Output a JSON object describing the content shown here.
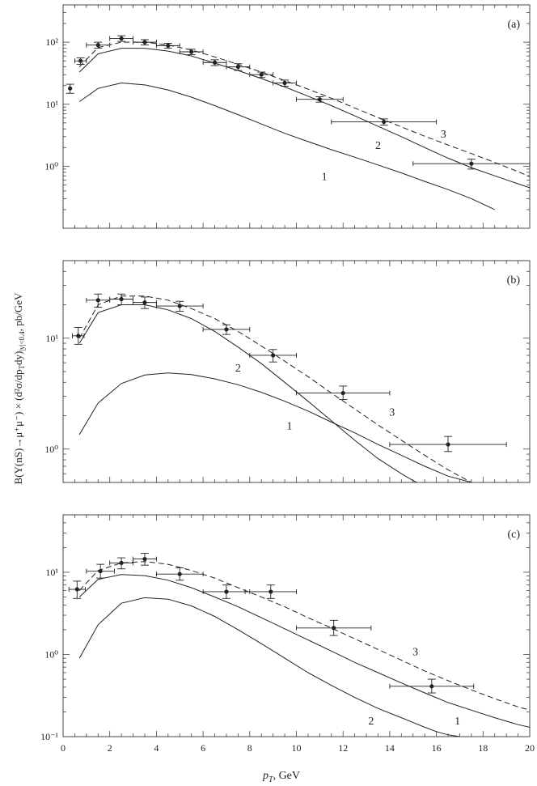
{
  "ylabel": "B(Υ(nS)→μ⁺μ⁻) × (d²σ/dp_T dy)|y|<0.4, pb/GeV",
  "ylabel_parts": {
    "main": "B(Υ(nS)→μ⁺μ⁻) × (d²σ/dp",
    "sub1": "T",
    "mid": "dy)",
    "sub2": "|y|<0.4",
    "tail": ", pb/GeV"
  },
  "xlabel": "p_T, GeV",
  "xlabel_parts": {
    "main": "p",
    "sub": "T",
    "tail": ", GeV"
  },
  "colors": {
    "axis": "#444444",
    "curve": "#222222",
    "data": "#222222"
  },
  "chart_data": [
    {
      "type": "line",
      "panel_label": "(a)",
      "yscale": "log",
      "xlim": [
        0,
        20
      ],
      "ylim": [
        0.1,
        400
      ],
      "yticks": [
        {
          "v": 1,
          "label": "10⁰"
        },
        {
          "v": 10,
          "label": "10¹"
        },
        {
          "v": 100,
          "label": "10²"
        }
      ],
      "series": [
        {
          "name": "1",
          "style": "solid",
          "x": [
            0.7,
            1.5,
            2.5,
            3.5,
            4.5,
            5.5,
            6.5,
            7.5,
            8.5,
            9.5,
            10.5,
            11.5,
            12.5,
            13.5,
            14.5,
            15.5,
            16.5,
            17.5,
            18.5
          ],
          "y": [
            11,
            18,
            22,
            20.5,
            17,
            13,
            9.5,
            6.8,
            4.8,
            3.4,
            2.5,
            1.85,
            1.4,
            1.05,
            0.78,
            0.57,
            0.42,
            0.3,
            0.2
          ]
        },
        {
          "name": "2",
          "style": "solid",
          "x": [
            0.7,
            1.5,
            2.5,
            3.5,
            4.5,
            5.5,
            6.5,
            7.5,
            8.5,
            9.5,
            10.5,
            11.5,
            12.5,
            13.5,
            14.5,
            15.5,
            16.5,
            17.5,
            18.5,
            19.5,
            20
          ],
          "y": [
            33,
            65,
            80,
            80,
            72,
            60,
            46,
            35,
            26,
            19,
            13.5,
            9.5,
            6.5,
            4.4,
            3.0,
            2.0,
            1.35,
            0.95,
            0.7,
            0.52,
            0.45
          ]
        },
        {
          "name": "3",
          "style": "dashed",
          "x": [
            0.7,
            1.5,
            2.5,
            3.5,
            4.5,
            5.5,
            6.5,
            7.5,
            8.5,
            9.5,
            10.5,
            11.5,
            12.5,
            13.5,
            14.5,
            15.5,
            16.5,
            17.5,
            18.5,
            19.5,
            20
          ],
          "y": [
            40,
            82,
            100,
            100,
            90,
            75,
            58,
            44,
            33,
            24,
            17.5,
            12.5,
            8.7,
            6.1,
            4.3,
            3.05,
            2.2,
            1.6,
            1.15,
            0.82,
            0.68
          ]
        }
      ],
      "points": [
        {
          "x": 0.3,
          "y": 18,
          "xerr": 0,
          "ylo": 15,
          "yhi": 21
        },
        {
          "x": 0.75,
          "y": 50,
          "xerr": 0.25,
          "ylo": 44,
          "yhi": 56
        },
        {
          "x": 1.5,
          "y": 90,
          "xerr": 0.5,
          "ylo": 80,
          "yhi": 100
        },
        {
          "x": 2.5,
          "y": 115,
          "xerr": 0.5,
          "ylo": 103,
          "yhi": 127
        },
        {
          "x": 3.5,
          "y": 100,
          "xerr": 0.5,
          "ylo": 90,
          "yhi": 110
        },
        {
          "x": 4.5,
          "y": 88,
          "xerr": 0.5,
          "ylo": 80,
          "yhi": 96
        },
        {
          "x": 5.5,
          "y": 70,
          "xerr": 0.5,
          "ylo": 63,
          "yhi": 77
        },
        {
          "x": 6.5,
          "y": 47,
          "xerr": 0.5,
          "ylo": 42,
          "yhi": 52
        },
        {
          "x": 7.5,
          "y": 40,
          "xerr": 0.5,
          "ylo": 35,
          "yhi": 45
        },
        {
          "x": 8.5,
          "y": 30,
          "xerr": 0.5,
          "ylo": 27,
          "yhi": 33
        },
        {
          "x": 9.5,
          "y": 22,
          "xerr": 0.5,
          "ylo": 19.5,
          "yhi": 24.5
        },
        {
          "x": 11,
          "y": 12,
          "xerr": 1,
          "ylo": 10.8,
          "yhi": 13.2
        },
        {
          "x": 13.75,
          "y": 5.2,
          "xerr": 2.25,
          "ylo": 4.6,
          "yhi": 5.8
        },
        {
          "x": 17.5,
          "y": 1.1,
          "xerr": 2.5,
          "ylo": 0.9,
          "yhi": 1.3
        }
      ],
      "curve_labels": [
        {
          "text": "1",
          "x": 11.2,
          "y": 0.6
        },
        {
          "text": "2",
          "x": 13.5,
          "y": 1.9
        },
        {
          "text": "3",
          "x": 16.3,
          "y": 2.9
        }
      ]
    },
    {
      "type": "line",
      "panel_label": "(b)",
      "yscale": "log",
      "xlim": [
        0,
        20
      ],
      "ylim": [
        0.5,
        50
      ],
      "yticks": [
        {
          "v": 1,
          "label": "10⁰"
        },
        {
          "v": 10,
          "label": "10¹"
        }
      ],
      "series": [
        {
          "name": "1",
          "style": "solid",
          "x": [
            0.7,
            1.5,
            2.5,
            3.5,
            4.5,
            5.5,
            6.5,
            7.5,
            8.5,
            9.5,
            10.5,
            11.5,
            12.5,
            13.5,
            14.5,
            15.5,
            16.5,
            17.5,
            18.5
          ],
          "y": [
            1.35,
            2.6,
            3.9,
            4.65,
            4.85,
            4.7,
            4.3,
            3.8,
            3.25,
            2.7,
            2.2,
            1.75,
            1.4,
            1.1,
            0.88,
            0.7,
            0.57,
            0.5,
            0.43
          ]
        },
        {
          "name": "2",
          "style": "solid",
          "x": [
            0.7,
            1.5,
            2.5,
            3.5,
            4.5,
            5.5,
            6.5,
            7.5,
            8.5,
            9.5,
            10.5,
            11.5,
            12.5,
            13.5,
            14.5,
            15.0,
            15.5
          ],
          "y": [
            9,
            17,
            20,
            20,
            18,
            15,
            11.5,
            8.3,
            5.9,
            4.0,
            2.7,
            1.8,
            1.2,
            0.82,
            0.6,
            0.52,
            0.46
          ]
        },
        {
          "name": "3",
          "style": "dashed",
          "x": [
            0.7,
            1.5,
            2.5,
            3.5,
            4.5,
            5.5,
            6.5,
            7.5,
            8.5,
            9.5,
            10.5,
            11.5,
            12.5,
            13.5,
            14.5,
            15.5,
            16.5,
            17.5,
            18.0
          ],
          "y": [
            10,
            20,
            24,
            24,
            22,
            18.5,
            15,
            11.5,
            8.5,
            6.2,
            4.5,
            3.2,
            2.3,
            1.65,
            1.2,
            0.88,
            0.65,
            0.5,
            0.44
          ]
        }
      ],
      "points": [
        {
          "x": 0.65,
          "y": 10.5,
          "xerr": 0.25,
          "ylo": 8.8,
          "yhi": 12.5
        },
        {
          "x": 1.5,
          "y": 22,
          "xerr": 0.5,
          "ylo": 19,
          "yhi": 25
        },
        {
          "x": 2.5,
          "y": 22.5,
          "xerr": 0.5,
          "ylo": 20,
          "yhi": 25
        },
        {
          "x": 3.5,
          "y": 21,
          "xerr": 0.5,
          "ylo": 18.5,
          "yhi": 23.5
        },
        {
          "x": 5,
          "y": 19.5,
          "xerr": 1,
          "ylo": 17.5,
          "yhi": 21.5
        },
        {
          "x": 7,
          "y": 12,
          "xerr": 1,
          "ylo": 10.8,
          "yhi": 13.2
        },
        {
          "x": 9,
          "y": 7,
          "xerr": 1,
          "ylo": 6.1,
          "yhi": 7.9
        },
        {
          "x": 12,
          "y": 3.2,
          "xerr": 2,
          "ylo": 2.8,
          "yhi": 3.7
        },
        {
          "x": 16.5,
          "y": 1.1,
          "xerr": 2.5,
          "ylo": 0.95,
          "yhi": 1.3
        }
      ],
      "curve_labels": [
        {
          "text": "2",
          "x": 7.5,
          "y": 5.0
        },
        {
          "text": "1",
          "x": 9.7,
          "y": 1.5
        },
        {
          "text": "3",
          "x": 14.1,
          "y": 2.0
        }
      ]
    },
    {
      "type": "line",
      "panel_label": "(c)",
      "yscale": "log",
      "xlim": [
        0,
        20
      ],
      "ylim": [
        0.1,
        50
      ],
      "yticks": [
        {
          "v": 0.1,
          "label": "10⁻¹"
        },
        {
          "v": 1,
          "label": "10⁰"
        },
        {
          "v": 10,
          "label": "10¹"
        }
      ],
      "series": [
        {
          "name": "1",
          "style": "solid",
          "x": [
            0.7,
            1.5,
            2.5,
            3.5,
            4.5,
            5.5,
            6.5,
            7.5,
            8.5,
            9.5,
            10.5,
            11.5,
            12.5,
            13.5,
            14.5,
            15.5,
            16.0,
            16.5,
            17.0
          ],
          "y": [
            0.9,
            2.3,
            4.2,
            4.9,
            4.7,
            3.9,
            2.9,
            2.0,
            1.35,
            0.9,
            0.6,
            0.42,
            0.3,
            0.22,
            0.17,
            0.13,
            0.115,
            0.105,
            0.1
          ]
        },
        {
          "name": "2",
          "style": "solid",
          "x": [
            0.7,
            1.5,
            2.5,
            3.5,
            4.5,
            5.5,
            6.5,
            7.5,
            8.5,
            9.5,
            10.5,
            11.5,
            12.5,
            13.5,
            14.5,
            15.5,
            16.5,
            17.5,
            18.5,
            19.5,
            20
          ],
          "y": [
            5,
            8.2,
            9.4,
            9.1,
            8.0,
            6.5,
            5.0,
            3.8,
            2.8,
            2.05,
            1.5,
            1.1,
            0.8,
            0.6,
            0.45,
            0.34,
            0.26,
            0.21,
            0.17,
            0.14,
            0.13
          ]
        },
        {
          "name": "3",
          "style": "dashed",
          "x": [
            0.7,
            1.5,
            2.5,
            3.5,
            4.5,
            5.5,
            6.5,
            7.5,
            8.5,
            9.5,
            10.5,
            11.5,
            12.5,
            13.5,
            14.5,
            15.5,
            16.5,
            17.5,
            18.5,
            19.5,
            20
          ],
          "y": [
            6,
            10.5,
            13,
            13.5,
            12.5,
            10.5,
            8.5,
            6.5,
            5.0,
            3.8,
            2.8,
            2.1,
            1.55,
            1.15,
            0.85,
            0.63,
            0.48,
            0.37,
            0.29,
            0.23,
            0.21
          ]
        }
      ],
      "points": [
        {
          "x": 0.6,
          "y": 6.2,
          "xerr": 0.35,
          "ylo": 4.8,
          "yhi": 7.8
        },
        {
          "x": 1.6,
          "y": 10.3,
          "xerr": 0.6,
          "ylo": 8.5,
          "yhi": 12.5
        },
        {
          "x": 2.5,
          "y": 13,
          "xerr": 0.5,
          "ylo": 11,
          "yhi": 15
        },
        {
          "x": 3.5,
          "y": 14.5,
          "xerr": 0.5,
          "ylo": 12.2,
          "yhi": 17
        },
        {
          "x": 5,
          "y": 9.5,
          "xerr": 1,
          "ylo": 8.0,
          "yhi": 11.3
        },
        {
          "x": 7,
          "y": 5.8,
          "xerr": 1,
          "ylo": 4.8,
          "yhi": 7.0
        },
        {
          "x": 8.9,
          "y": 5.8,
          "xerr": 1.1,
          "ylo": 4.8,
          "yhi": 7.0
        },
        {
          "x": 11.6,
          "y": 2.1,
          "xerr": 1.6,
          "ylo": 1.7,
          "yhi": 2.6
        },
        {
          "x": 15.8,
          "y": 0.41,
          "xerr": 1.8,
          "ylo": 0.34,
          "yhi": 0.5
        }
      ],
      "curve_labels": [
        {
          "text": "3",
          "x": 15.1,
          "y": 0.98
        },
        {
          "text": "2",
          "x": 13.2,
          "y": 0.14
        },
        {
          "text": "1",
          "x": 16.9,
          "y": 0.14
        }
      ],
      "xticks": [
        0,
        2,
        4,
        6,
        8,
        10,
        12,
        14,
        16,
        18,
        20
      ]
    }
  ]
}
